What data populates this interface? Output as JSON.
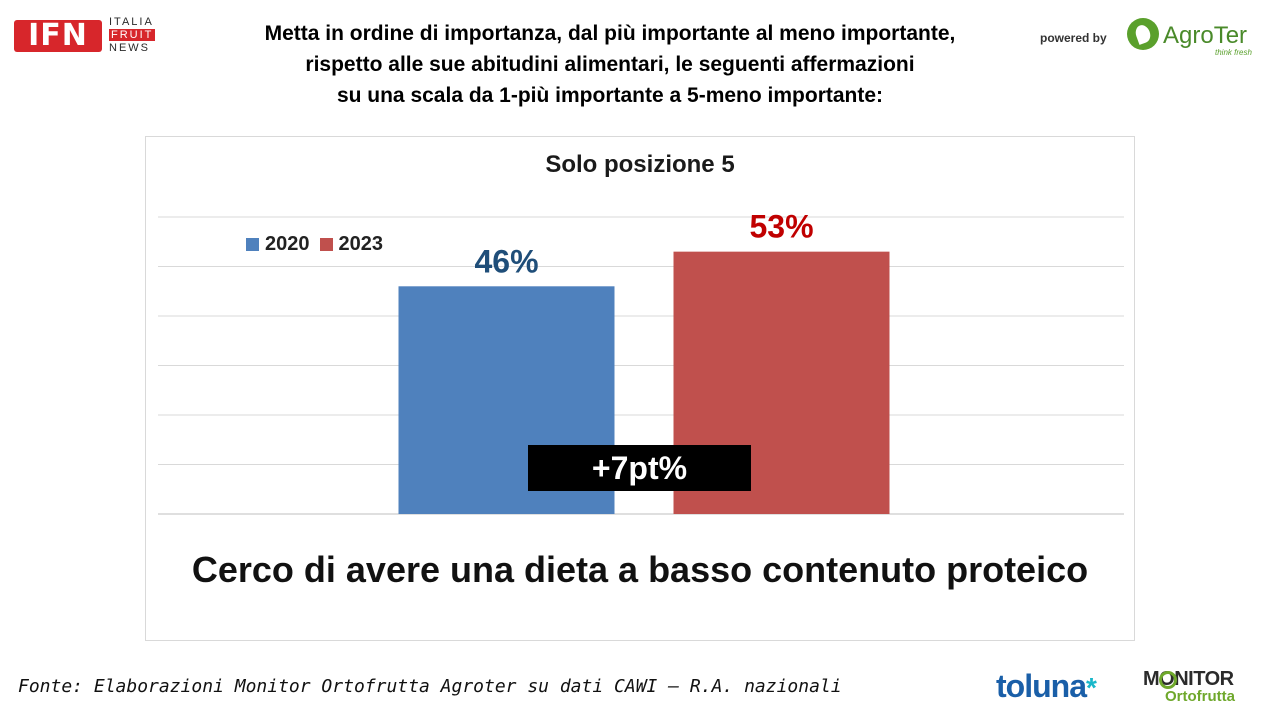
{
  "branding": {
    "ifn_mark": "IFN",
    "ifn_words": [
      "ITALIA",
      "FRUIT",
      "NEWS"
    ],
    "powered_by": "powered by",
    "agroter_name": "AgroTer",
    "agroter_tagline": "think fresh",
    "toluna": "toluna",
    "toluna_star": "*",
    "monitor_top": "MONITOR",
    "monitor_bottom": "Ortofrutta"
  },
  "question": {
    "line1": "Metta in ordine di importanza, dal più importante al meno importante,",
    "line2": "rispetto alle sue abitudini alimentari, le seguenti affermazioni",
    "line3": "su una scala da 1-più importante a 5-meno importante:"
  },
  "chart_data": {
    "type": "bar",
    "title": "Solo posizione 5",
    "categories": [
      "Cerco di avere una dieta a basso contenuto proteico"
    ],
    "series": [
      {
        "name": "2020",
        "values": [
          46
        ],
        "label": "46%",
        "color": "#4f81bd",
        "label_color": "#1f4e79"
      },
      {
        "name": "2023",
        "values": [
          53
        ],
        "label": "53%",
        "color": "#c0504d",
        "label_color": "#c00000"
      }
    ],
    "ylim": [
      0,
      60
    ],
    "grid": true,
    "legend_position": "top-left",
    "annotation": "+7pt%",
    "statement": "Cerco di avere una dieta a basso contenuto proteico"
  },
  "footer": {
    "source": "Fonte: Elaborazioni Monitor Ortofrutta Agroter su dati CAWI – R.A. nazionali"
  }
}
